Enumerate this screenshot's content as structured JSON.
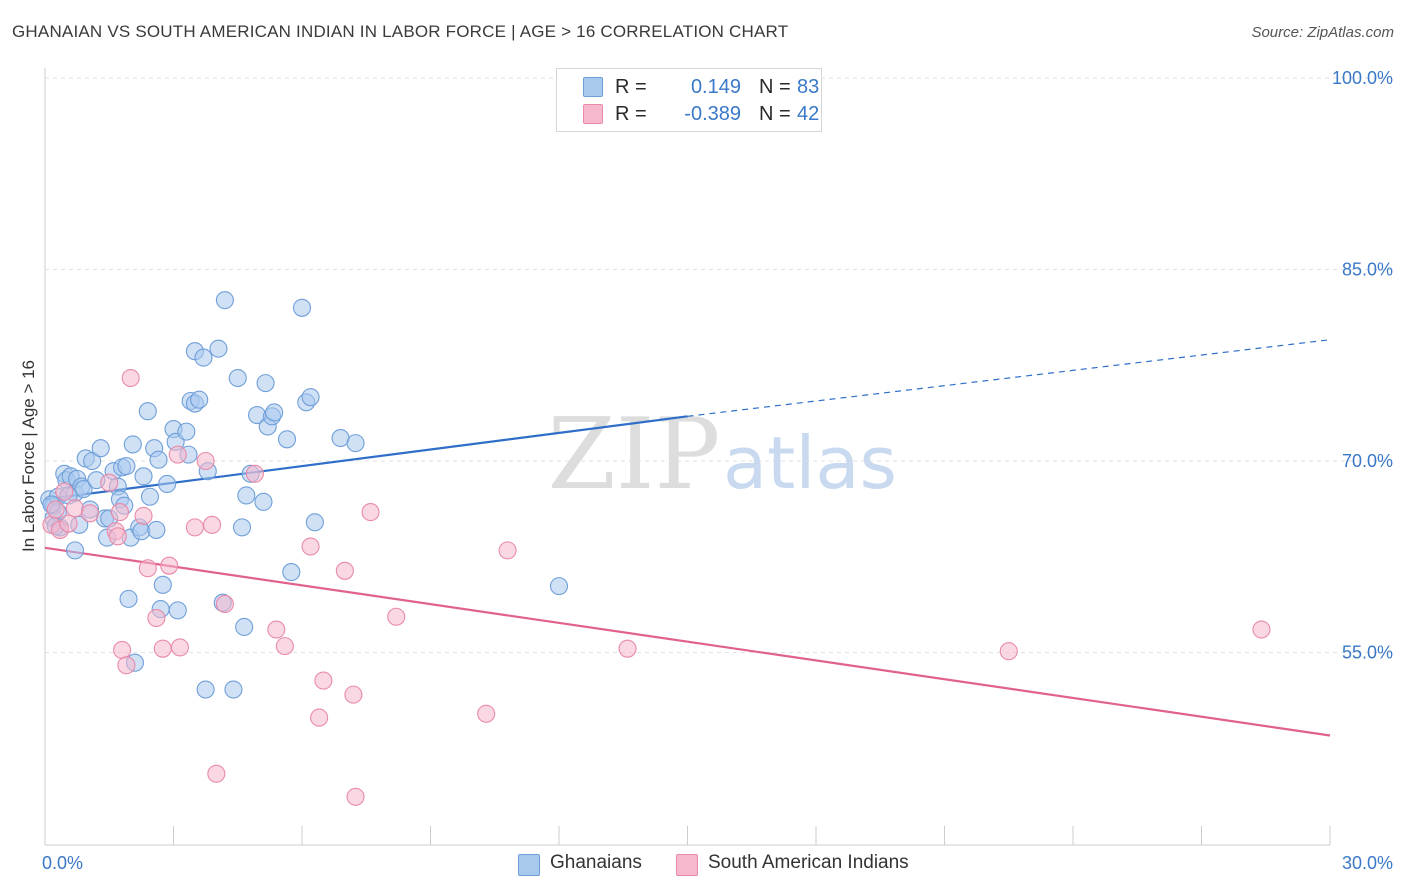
{
  "header": {
    "title": "GHANAIAN VS SOUTH AMERICAN INDIAN IN LABOR FORCE | AGE > 16 CORRELATION CHART",
    "source": "Source: ZipAtlas.com"
  },
  "watermark": {
    "zip": "ZIP",
    "atlas": "atlas"
  },
  "legend": {
    "rows": [
      {
        "r_label": "R =",
        "r_value": "0.149",
        "n_label": "N =",
        "n_value": "83"
      },
      {
        "r_label": "R =",
        "r_value": "-0.389",
        "n_label": "N =",
        "n_value": "42"
      }
    ]
  },
  "bottom_legend": {
    "items": [
      "Ghanaians",
      "South American Indians"
    ]
  },
  "colors": {
    "blue_fill": "#a9c8ee",
    "blue_stroke": "#6f9fd8",
    "blue_line": "#2f6fc9",
    "pink_fill": "#f5b8cc",
    "pink_stroke": "#e98aaa",
    "pink_line": "#e0608e",
    "axis_text": "#3a78c8",
    "grid": "#e2e2e2"
  },
  "chart_data": {
    "type": "scatter",
    "title": "GHANAIAN VS SOUTH AMERICAN INDIAN IN LABOR FORCE | AGE > 16 CORRELATION CHART",
    "xlabel": "",
    "ylabel": "In Labor Force | Age > 16",
    "xlim": [
      0,
      30
    ],
    "ylim": [
      40,
      101.5
    ],
    "x_tick_labels": [
      "0.0%",
      "30.0%"
    ],
    "y_ticks": [
      55,
      70,
      85,
      100
    ],
    "y_tick_labels": [
      "55.0%",
      "70.0%",
      "85.0%",
      "100.0%"
    ],
    "grid": "horizontal dashed",
    "legend_position": "top-center",
    "series": [
      {
        "name": "Ghanaians",
        "trend": {
          "x": [
            0,
            15
          ],
          "y": [
            67.0,
            73.5
          ],
          "dashed_to": [
            30,
            79.5
          ]
        },
        "points": [
          [
            0.1,
            67.0
          ],
          [
            0.2,
            65.5
          ],
          [
            0.2,
            66.5
          ],
          [
            0.3,
            67.2
          ],
          [
            0.3,
            66.0
          ],
          [
            0.35,
            64.8
          ],
          [
            0.45,
            69.0
          ],
          [
            0.5,
            68.5
          ],
          [
            0.6,
            68.8
          ],
          [
            0.7,
            63.0
          ],
          [
            0.7,
            67.5
          ],
          [
            0.75,
            68.6
          ],
          [
            0.8,
            65.0
          ],
          [
            0.85,
            68.0
          ],
          [
            0.9,
            67.8
          ],
          [
            0.95,
            70.2
          ],
          [
            1.05,
            66.2
          ],
          [
            1.1,
            70.0
          ],
          [
            1.2,
            68.5
          ],
          [
            1.3,
            71.0
          ],
          [
            1.4,
            65.5
          ],
          [
            1.45,
            64.0
          ],
          [
            1.5,
            65.5
          ],
          [
            1.6,
            69.2
          ],
          [
            1.7,
            68.0
          ],
          [
            1.75,
            67.0
          ],
          [
            1.8,
            69.5
          ],
          [
            1.85,
            66.5
          ],
          [
            1.9,
            69.6
          ],
          [
            1.95,
            59.2
          ],
          [
            2.0,
            64.0
          ],
          [
            2.05,
            71.3
          ],
          [
            2.1,
            54.2
          ],
          [
            2.2,
            64.8
          ],
          [
            2.25,
            64.5
          ],
          [
            2.3,
            68.8
          ],
          [
            2.4,
            73.9
          ],
          [
            2.45,
            67.2
          ],
          [
            2.55,
            71.0
          ],
          [
            2.6,
            64.6
          ],
          [
            2.65,
            70.1
          ],
          [
            2.7,
            58.4
          ],
          [
            2.75,
            60.3
          ],
          [
            2.85,
            68.2
          ],
          [
            3.0,
            72.5
          ],
          [
            3.05,
            71.5
          ],
          [
            3.1,
            58.3
          ],
          [
            3.3,
            72.3
          ],
          [
            3.35,
            70.5
          ],
          [
            3.4,
            74.7
          ],
          [
            3.5,
            74.5
          ],
          [
            3.5,
            78.6
          ],
          [
            3.6,
            74.8
          ],
          [
            3.7,
            78.1
          ],
          [
            3.75,
            52.1
          ],
          [
            3.8,
            69.2
          ],
          [
            4.05,
            78.8
          ],
          [
            4.15,
            58.9
          ],
          [
            4.2,
            82.6
          ],
          [
            4.4,
            52.1
          ],
          [
            4.5,
            76.5
          ],
          [
            4.6,
            64.8
          ],
          [
            4.65,
            57.0
          ],
          [
            4.7,
            67.3
          ],
          [
            4.8,
            69.0
          ],
          [
            4.95,
            73.6
          ],
          [
            5.1,
            66.8
          ],
          [
            5.15,
            76.1
          ],
          [
            5.2,
            72.7
          ],
          [
            5.3,
            73.5
          ],
          [
            5.35,
            73.8
          ],
          [
            5.65,
            71.7
          ],
          [
            5.75,
            61.3
          ],
          [
            6.0,
            82.0
          ],
          [
            6.1,
            74.6
          ],
          [
            6.2,
            75.0
          ],
          [
            6.3,
            65.2
          ],
          [
            6.9,
            71.8
          ],
          [
            7.25,
            71.4
          ],
          [
            12.0,
            60.2
          ],
          [
            0.15,
            66.6
          ],
          [
            0.25,
            64.9
          ],
          [
            0.55,
            67.3
          ]
        ]
      },
      {
        "name": "South American Indians",
        "trend": {
          "x": [
            0,
            30
          ],
          "y": [
            63.2,
            48.5
          ]
        },
        "points": [
          [
            0.15,
            65.0
          ],
          [
            0.25,
            66.2
          ],
          [
            0.35,
            64.6
          ],
          [
            0.45,
            67.6
          ],
          [
            0.55,
            65.1
          ],
          [
            0.7,
            66.3
          ],
          [
            1.05,
            65.9
          ],
          [
            1.5,
            68.3
          ],
          [
            1.65,
            64.5
          ],
          [
            1.7,
            64.1
          ],
          [
            1.75,
            66.0
          ],
          [
            1.8,
            55.2
          ],
          [
            1.9,
            54.0
          ],
          [
            2.0,
            76.5
          ],
          [
            2.3,
            65.7
          ],
          [
            2.4,
            61.6
          ],
          [
            2.6,
            57.7
          ],
          [
            2.75,
            55.3
          ],
          [
            2.9,
            61.8
          ],
          [
            3.1,
            70.5
          ],
          [
            3.15,
            55.4
          ],
          [
            3.5,
            64.8
          ],
          [
            3.75,
            70.0
          ],
          [
            3.9,
            65.0
          ],
          [
            4.0,
            45.5
          ],
          [
            4.2,
            58.8
          ],
          [
            4.9,
            69.0
          ],
          [
            5.4,
            56.8
          ],
          [
            5.6,
            55.5
          ],
          [
            6.2,
            63.3
          ],
          [
            6.4,
            49.9
          ],
          [
            6.5,
            52.8
          ],
          [
            7.0,
            61.4
          ],
          [
            7.2,
            51.7
          ],
          [
            7.25,
            43.7
          ],
          [
            7.6,
            66.0
          ],
          [
            8.2,
            57.8
          ],
          [
            10.3,
            50.2
          ],
          [
            10.8,
            63.0
          ],
          [
            13.6,
            55.3
          ],
          [
            22.5,
            55.1
          ],
          [
            28.4,
            56.8
          ]
        ]
      }
    ]
  }
}
